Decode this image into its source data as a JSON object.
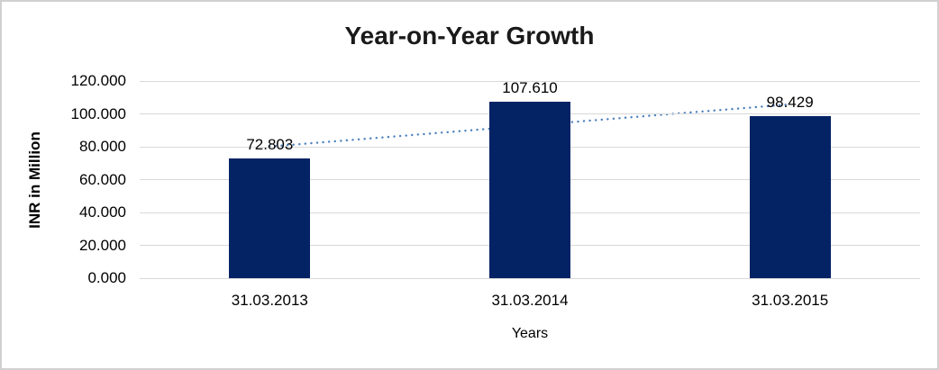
{
  "chart_data": {
    "type": "bar",
    "title": "Year-on-Year Growth",
    "xlabel": "Years",
    "ylabel": "INR in Million",
    "categories": [
      "31.03.2013",
      "31.03.2014",
      "31.03.2015"
    ],
    "values": [
      72.803,
      107.61,
      98.429
    ],
    "data_labels": [
      "72.803",
      "107.610",
      "98.429"
    ],
    "ylim": [
      0,
      120
    ],
    "yticks": [
      {
        "value": 0,
        "label": "0.000"
      },
      {
        "value": 20,
        "label": "20.000"
      },
      {
        "value": 40,
        "label": "40.000"
      },
      {
        "value": 60,
        "label": "60.000"
      },
      {
        "value": 80,
        "label": "80.000"
      },
      {
        "value": 100,
        "label": "100.000"
      },
      {
        "value": 120,
        "label": "120.000"
      }
    ],
    "grid": "horizontal",
    "legend": "none",
    "colors": {
      "bar": "#032365",
      "trendline": "#4D81BE",
      "gridline": "#d9d9d9",
      "title_text": "#1a1a1a",
      "label_text": "#000000"
    },
    "trendline": {
      "type": "linear",
      "style": "dotted",
      "start_value": 80.1,
      "end_value": 105.8
    }
  }
}
